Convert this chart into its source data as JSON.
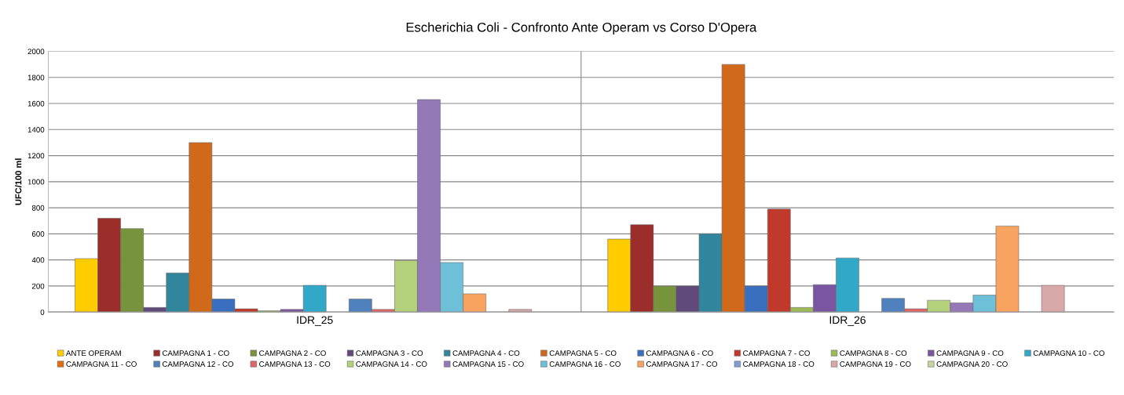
{
  "chart_data": {
    "type": "bar",
    "title": "Escherichia Coli - Confronto Ante Operam vs Corso D'Opera",
    "ylabel": "UFC/100 ml",
    "categories": [
      "IDR_25",
      "IDR_26"
    ],
    "ylim": [
      0,
      2000
    ],
    "yticks": [
      0,
      200,
      400,
      600,
      800,
      1000,
      1200,
      1400,
      1600,
      1800,
      2000
    ],
    "grid": true,
    "legend": "bottom",
    "series": [
      {
        "name": "ANTE OPERAM",
        "color": "#ffcc00",
        "values": [
          410,
          560
        ]
      },
      {
        "name": "CAMPAGNA 1 - CO",
        "color": "#9b2d2b",
        "values": [
          720,
          670
        ]
      },
      {
        "name": "CAMPAGNA 2 - CO",
        "color": "#77933c",
        "values": [
          640,
          200
        ]
      },
      {
        "name": "CAMPAGNA 3 - CO",
        "color": "#604a7b",
        "values": [
          35,
          200
        ]
      },
      {
        "name": "CAMPAGNA 4 - CO",
        "color": "#31859c",
        "values": [
          300,
          600
        ]
      },
      {
        "name": "CAMPAGNA 5 - CO",
        "color": "#d1691a",
        "values": [
          1300,
          1900
        ]
      },
      {
        "name": "CAMPAGNA 6 - CO",
        "color": "#3a6fbf",
        "values": [
          100,
          200
        ]
      },
      {
        "name": "CAMPAGNA 7 - CO",
        "color": "#c0392b",
        "values": [
          25,
          790
        ]
      },
      {
        "name": "CAMPAGNA 8 - CO",
        "color": "#9bbb59",
        "values": [
          10,
          35
        ]
      },
      {
        "name": "CAMPAGNA 9 - CO",
        "color": "#7a56a0",
        "values": [
          20,
          210
        ]
      },
      {
        "name": "CAMPAGNA 10 - CO",
        "color": "#31a8c8",
        "values": [
          205,
          415
        ]
      },
      {
        "name": "CAMPAGNA 11 - CO",
        "color": "#e46c0a",
        "values": [
          null,
          null
        ]
      },
      {
        "name": "CAMPAGNA 12 - CO",
        "color": "#4f81bd",
        "values": [
          100,
          105
        ]
      },
      {
        "name": "CAMPAGNA 13 - CO",
        "color": "#e06666",
        "values": [
          20,
          25
        ]
      },
      {
        "name": "CAMPAGNA 14 - CO",
        "color": "#b3d07a",
        "values": [
          395,
          90
        ]
      },
      {
        "name": "CAMPAGNA 15 - CO",
        "color": "#9478b8",
        "values": [
          1630,
          70
        ]
      },
      {
        "name": "CAMPAGNA 16 - CO",
        "color": "#6dc0d8",
        "values": [
          380,
          130
        ]
      },
      {
        "name": "CAMPAGNA 17 - CO",
        "color": "#f9a360",
        "values": [
          140,
          660
        ]
      },
      {
        "name": "CAMPAGNA 18 - CO",
        "color": "#7f9fcf",
        "values": [
          null,
          null
        ]
      },
      {
        "name": "CAMPAGNA 19 - CO",
        "color": "#d9a8a8",
        "values": [
          20,
          205
        ]
      },
      {
        "name": "CAMPAGNA 20 - CO",
        "color": "#c3d69b",
        "values": [
          null,
          null
        ]
      }
    ]
  }
}
